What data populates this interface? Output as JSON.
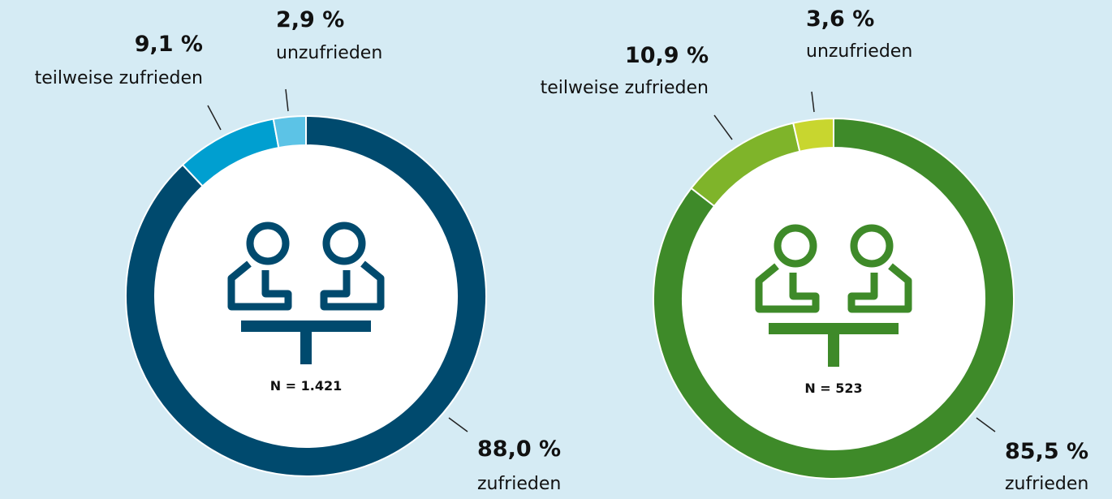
{
  "chart_data": [
    {
      "type": "donut",
      "categories": [
        "zufrieden",
        "teilweise zufrieden",
        "unzufrieden"
      ],
      "values": [
        88.0,
        9.1,
        2.9
      ],
      "value_labels": [
        "88,0 %",
        "9,1 %",
        "2,9 %"
      ],
      "colors": [
        "#004a6e",
        "#009fd0",
        "#5cc3e6"
      ],
      "annotation": "N = 1.421"
    },
    {
      "type": "donut",
      "categories": [
        "zufrieden",
        "teilweise zufrieden",
        "unzufrieden"
      ],
      "values": [
        85.5,
        10.9,
        3.6
      ],
      "value_labels": [
        "85,5 %",
        "10,9 %",
        "3,6 %"
      ],
      "colors": [
        "#3e8a29",
        "#7fb42a",
        "#c8d62f"
      ],
      "annotation": "N = 523"
    }
  ]
}
